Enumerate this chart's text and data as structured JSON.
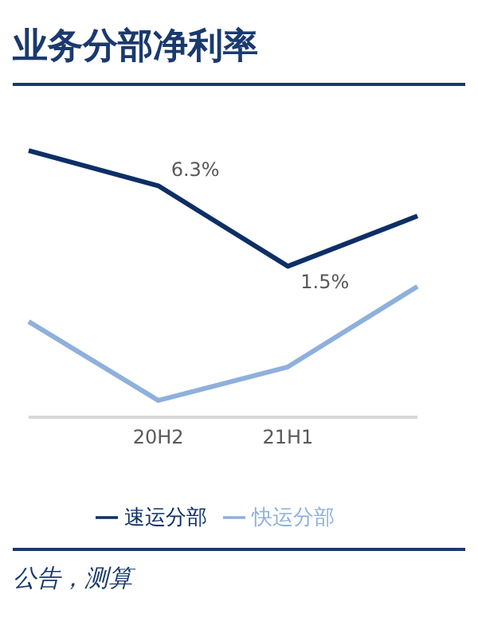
{
  "chart_data": {
    "type": "line",
    "title": "业务分部净利率",
    "categories": [
      null,
      "20H2",
      "21H1",
      null
    ],
    "series": [
      {
        "name": "速运分部",
        "color": "#0d2f66",
        "values": [
          8.4,
          6.3,
          1.5,
          4.5
        ],
        "value_labels": [
          null,
          "6.3%",
          "1.5%",
          null
        ]
      },
      {
        "name": "快运分部",
        "color": "#8fb0dc",
        "values": [
          -1.8,
          -6.5,
          -4.5,
          0.3
        ]
      }
    ],
    "legend": "bottom",
    "grid": false,
    "marker": "none",
    "line_style": "solid",
    "annotations": [
      "公告，测算"
    ]
  }
}
